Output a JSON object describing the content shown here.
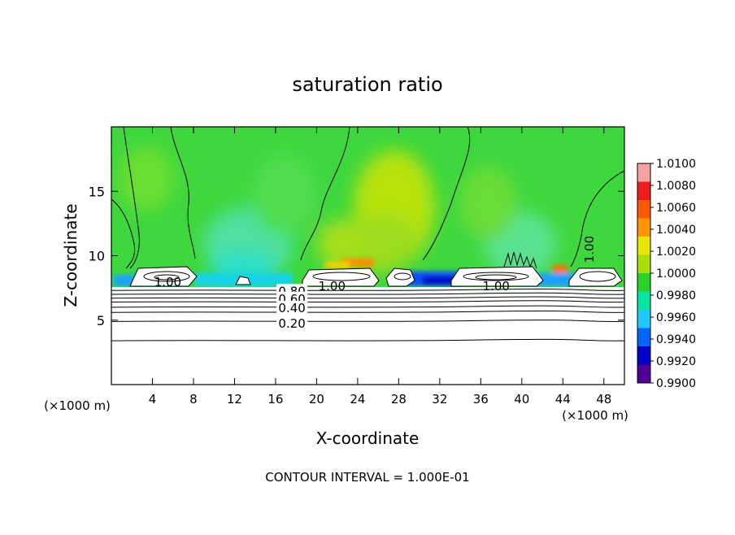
{
  "chart_data": {
    "type": "heatmap",
    "title": "saturation ratio",
    "xlabel": "X-coordinate",
    "ylabel": "Z-coordinate",
    "x_unit_left": "(×1000 m)",
    "x_unit_right": "(×1000 m)",
    "xlim": [
      0,
      50
    ],
    "ylim": [
      0,
      20
    ],
    "xticks": [
      4,
      8,
      12,
      16,
      20,
      24,
      28,
      32,
      36,
      40,
      44,
      48
    ],
    "yticks": [
      5,
      10,
      15
    ],
    "footer": "CONTOUR INTERVAL = 1.000E-01",
    "colorbar": {
      "labels": [
        "1.0100",
        "1.0080",
        "1.0060",
        "1.0040",
        "1.0020",
        "1.0000",
        "0.9980",
        "0.9960",
        "0.9940",
        "0.9920",
        "0.9900"
      ],
      "colors": [
        "#f4a0a0",
        "#ef1d1d",
        "#ff5a00",
        "#ff9600",
        "#e6e600",
        "#a8e000",
        "#28d228",
        "#00e6a0",
        "#1ec8ff",
        "#0064ff",
        "#0000c8",
        "#500096"
      ]
    },
    "contour_labels": [
      {
        "text": "1.00",
        "x": 5.5,
        "y": 8.0
      },
      {
        "text": "1.00",
        "x": 21.5,
        "y": 7.7
      },
      {
        "text": "1.00",
        "x": 37.5,
        "y": 7.7
      },
      {
        "text": "1.00",
        "x": 46.5,
        "y": 10.5
      },
      {
        "text": "0.80",
        "x": 17.6,
        "y": 7.3
      },
      {
        "text": "0.60",
        "x": 17.6,
        "y": 6.7
      },
      {
        "text": "0.40",
        "x": 17.6,
        "y": 6.0
      },
      {
        "text": "0.20",
        "x": 17.6,
        "y": 4.8
      }
    ],
    "contour_levels_z": [
      7.3,
      7.0,
      6.7,
      6.4,
      6.0,
      5.6,
      4.9,
      3.4
    ]
  }
}
